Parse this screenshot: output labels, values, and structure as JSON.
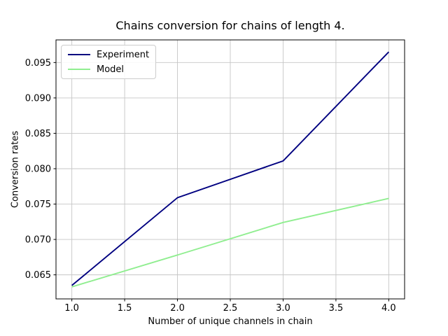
{
  "chart_data": {
    "type": "line",
    "title": "Chains conversion for chains of length 4.",
    "xlabel": "Number of unique channels in chain",
    "ylabel": "Conversion rates",
    "x": [
      1.0,
      2.0,
      3.0,
      4.0
    ],
    "series": [
      {
        "name": "Experiment",
        "color": "#000080",
        "values": [
          0.0635,
          0.0759,
          0.0811,
          0.0965
        ]
      },
      {
        "name": "Model",
        "color": "#90EE90",
        "values": [
          0.0633,
          0.0678,
          0.0724,
          0.0758
        ]
      }
    ],
    "xlim": [
      0.85,
      4.15
    ],
    "ylim": [
      0.0616,
      0.0982
    ],
    "x_ticks": [
      1.0,
      1.5,
      2.0,
      2.5,
      3.0,
      3.5,
      4.0
    ],
    "x_tick_labels": [
      "1.0",
      "1.5",
      "2.0",
      "2.5",
      "3.0",
      "3.5",
      "4.0"
    ],
    "y_ticks": [
      0.065,
      0.07,
      0.075,
      0.08,
      0.085,
      0.09,
      0.095
    ],
    "y_tick_labels": [
      "0.065",
      "0.070",
      "0.075",
      "0.080",
      "0.085",
      "0.090",
      "0.095"
    ],
    "grid": true,
    "legend_position": "upper left",
    "grid_color": "#c6c6c6",
    "spine_color": "#000000"
  }
}
